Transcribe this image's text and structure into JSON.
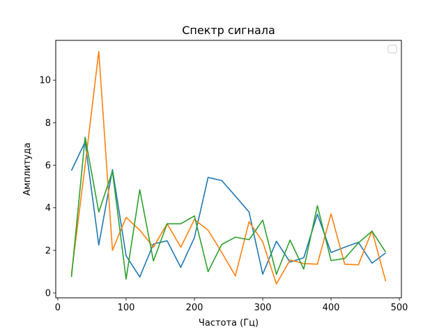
{
  "chart_data": {
    "type": "line",
    "title": "Спектр сигнала",
    "xlabel": "Частота (Гц)",
    "ylabel": "Амплитуда",
    "xlim": [
      -3,
      503
    ],
    "ylim": [
      -0.23,
      11.87
    ],
    "xticks": [
      0,
      100,
      200,
      300,
      400,
      500
    ],
    "yticks": [
      0,
      2,
      4,
      6,
      8,
      10
    ],
    "grid": false,
    "legend": {
      "placement": "top-right",
      "entries": []
    },
    "x": [
      20,
      40,
      60,
      80,
      100,
      120,
      140,
      160,
      180,
      200,
      220,
      240,
      260,
      280,
      300,
      320,
      340,
      360,
      380,
      400,
      420,
      440,
      460,
      480
    ],
    "series": [
      {
        "color": "#1f77b4",
        "values": [
          5.75,
          7.1,
          2.25,
          5.8,
          1.75,
          0.75,
          2.3,
          2.45,
          1.2,
          2.6,
          5.43,
          5.28,
          4.55,
          3.8,
          0.88,
          2.43,
          1.45,
          1.65,
          3.7,
          1.9,
          2.15,
          2.38,
          1.4,
          1.88
        ]
      },
      {
        "color": "#ff7f0e",
        "values": [
          0.9,
          6.0,
          11.35,
          2.0,
          3.55,
          2.95,
          2.15,
          3.25,
          2.15,
          3.45,
          2.95,
          1.9,
          0.8,
          3.35,
          2.4,
          0.42,
          1.55,
          1.38,
          1.35,
          3.72,
          1.35,
          1.32,
          2.92,
          0.55
        ]
      },
      {
        "color": "#2ca02c",
        "values": [
          0.75,
          7.32,
          3.8,
          5.72,
          0.65,
          4.85,
          1.5,
          3.25,
          3.25,
          3.62,
          1.0,
          2.28,
          2.62,
          2.5,
          3.42,
          0.88,
          2.48,
          1.12,
          4.1,
          1.52,
          1.62,
          2.35,
          2.9,
          1.92
        ]
      }
    ]
  }
}
